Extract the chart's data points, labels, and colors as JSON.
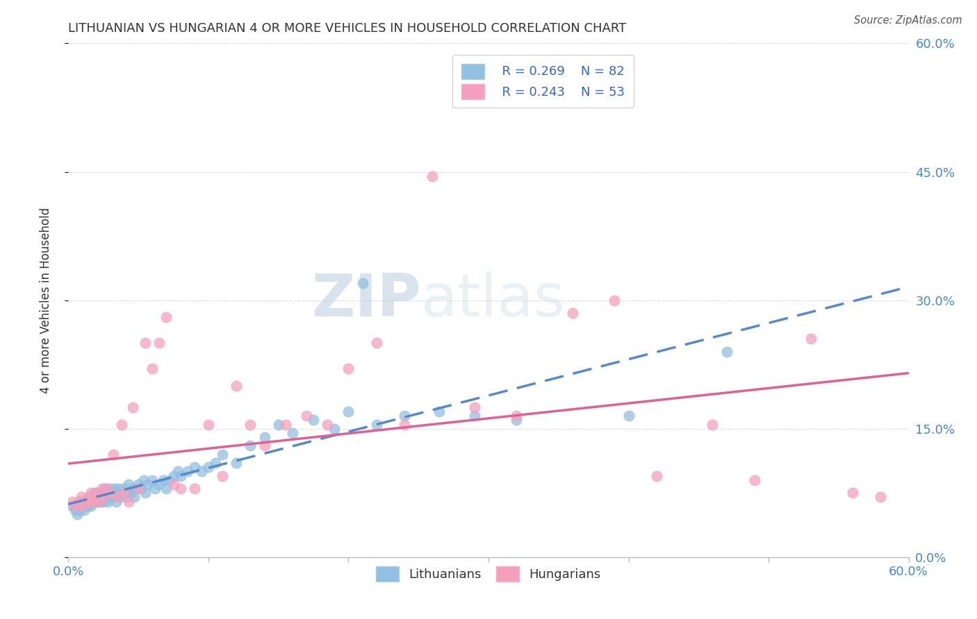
{
  "title": "LITHUANIAN VS HUNGARIAN 4 OR MORE VEHICLES IN HOUSEHOLD CORRELATION CHART",
  "source": "Source: ZipAtlas.com",
  "ylabel": "4 or more Vehicles in Household",
  "xlim": [
    0.0,
    0.6
  ],
  "ylim": [
    0.0,
    0.6
  ],
  "legend_r1": "R = 0.269",
  "legend_n1": "N = 82",
  "legend_r2": "R = 0.243",
  "legend_n2": "N = 53",
  "color_blue": "#92C0E0",
  "color_pink": "#F4A0BC",
  "line_blue": "#5588CC",
  "line_pink": "#E06090",
  "watermark_zip": "ZIP",
  "watermark_atlas": "atlas",
  "background_color": "#FFFFFF",
  "grid_color": "#DDDDDD",
  "lit_x": [
    0.003,
    0.005,
    0.006,
    0.007,
    0.008,
    0.009,
    0.01,
    0.01,
    0.011,
    0.012,
    0.013,
    0.014,
    0.015,
    0.015,
    0.016,
    0.017,
    0.018,
    0.019,
    0.02,
    0.02,
    0.021,
    0.022,
    0.023,
    0.024,
    0.025,
    0.026,
    0.027,
    0.028,
    0.029,
    0.03,
    0.031,
    0.032,
    0.033,
    0.034,
    0.035,
    0.036,
    0.037,
    0.038,
    0.04,
    0.041,
    0.042,
    0.043,
    0.045,
    0.046,
    0.047,
    0.048,
    0.05,
    0.052,
    0.054,
    0.055,
    0.057,
    0.06,
    0.062,
    0.065,
    0.068,
    0.07,
    0.072,
    0.075,
    0.078,
    0.08,
    0.085,
    0.09,
    0.095,
    0.1,
    0.105,
    0.11,
    0.12,
    0.13,
    0.14,
    0.15,
    0.16,
    0.175,
    0.19,
    0.2,
    0.21,
    0.22,
    0.24,
    0.265,
    0.29,
    0.32,
    0.4,
    0.47
  ],
  "lit_y": [
    0.06,
    0.055,
    0.05,
    0.06,
    0.055,
    0.065,
    0.06,
    0.065,
    0.055,
    0.06,
    0.065,
    0.06,
    0.07,
    0.065,
    0.06,
    0.07,
    0.065,
    0.075,
    0.065,
    0.075,
    0.07,
    0.065,
    0.075,
    0.07,
    0.065,
    0.08,
    0.07,
    0.065,
    0.075,
    0.08,
    0.07,
    0.075,
    0.08,
    0.065,
    0.075,
    0.08,
    0.07,
    0.075,
    0.08,
    0.075,
    0.07,
    0.085,
    0.075,
    0.08,
    0.07,
    0.08,
    0.085,
    0.08,
    0.09,
    0.075,
    0.085,
    0.09,
    0.08,
    0.085,
    0.09,
    0.08,
    0.09,
    0.095,
    0.1,
    0.095,
    0.1,
    0.105,
    0.1,
    0.105,
    0.11,
    0.12,
    0.11,
    0.13,
    0.14,
    0.155,
    0.145,
    0.16,
    0.15,
    0.17,
    0.32,
    0.155,
    0.165,
    0.17,
    0.165,
    0.16,
    0.165,
    0.24
  ],
  "hun_x": [
    0.003,
    0.005,
    0.007,
    0.009,
    0.01,
    0.012,
    0.014,
    0.015,
    0.016,
    0.018,
    0.019,
    0.02,
    0.022,
    0.024,
    0.025,
    0.027,
    0.03,
    0.032,
    0.035,
    0.038,
    0.04,
    0.043,
    0.046,
    0.05,
    0.055,
    0.06,
    0.065,
    0.07,
    0.075,
    0.08,
    0.09,
    0.1,
    0.11,
    0.12,
    0.13,
    0.14,
    0.155,
    0.17,
    0.185,
    0.2,
    0.22,
    0.24,
    0.26,
    0.29,
    0.32,
    0.36,
    0.39,
    0.42,
    0.46,
    0.49,
    0.53,
    0.56,
    0.58
  ],
  "hun_y": [
    0.065,
    0.06,
    0.065,
    0.07,
    0.06,
    0.065,
    0.07,
    0.065,
    0.075,
    0.065,
    0.07,
    0.075,
    0.065,
    0.08,
    0.07,
    0.08,
    0.075,
    0.12,
    0.07,
    0.155,
    0.075,
    0.065,
    0.175,
    0.08,
    0.25,
    0.22,
    0.25,
    0.28,
    0.085,
    0.08,
    0.08,
    0.155,
    0.095,
    0.2,
    0.155,
    0.13,
    0.155,
    0.165,
    0.155,
    0.22,
    0.25,
    0.155,
    0.445,
    0.175,
    0.165,
    0.285,
    0.3,
    0.095,
    0.155,
    0.09,
    0.255,
    0.075,
    0.07
  ]
}
